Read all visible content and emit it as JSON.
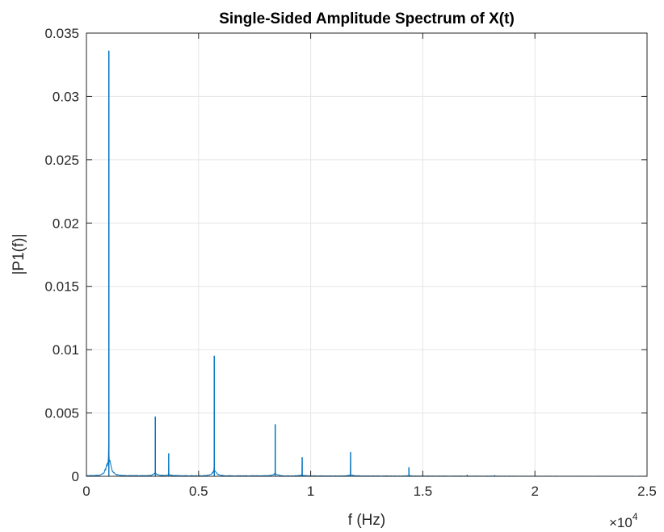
{
  "chart_data": {
    "type": "line",
    "title": "Single-Sided Amplitude Spectrum of X(t)",
    "xlabel": "f (Hz)",
    "ylabel": "|P1(f)|",
    "xlim": [
      0,
      25000
    ],
    "ylim": [
      0,
      0.035
    ],
    "x_multiplier_base": "×10",
    "x_multiplier_exp": "4",
    "x_ticks": [
      0,
      5000,
      10000,
      15000,
      20000,
      25000
    ],
    "x_tick_labels": [
      "0",
      "0.5",
      "1",
      "1.5",
      "2",
      "2.5"
    ],
    "y_ticks": [
      0,
      0.005,
      0.01,
      0.015,
      0.02,
      0.025,
      0.03,
      0.035
    ],
    "y_tick_labels": [
      "0",
      "0.005",
      "0.01",
      "0.015",
      "0.02",
      "0.025",
      "0.03",
      "0.035"
    ],
    "grid": true,
    "line_color": "#0072BD",
    "grid_color": "#e5e5e5",
    "peaks": [
      {
        "f": 1000,
        "amp": 0.0336
      },
      {
        "f": 3070,
        "amp": 0.0047
      },
      {
        "f": 3670,
        "amp": 0.0018
      },
      {
        "f": 5700,
        "amp": 0.0095
      },
      {
        "f": 8420,
        "amp": 0.0041
      },
      {
        "f": 9620,
        "amp": 0.0015
      },
      {
        "f": 11780,
        "amp": 0.0019
      },
      {
        "f": 14380,
        "amp": 0.0007
      },
      {
        "f": 16980,
        "amp": 0.0001
      },
      {
        "f": 18200,
        "amp": 8e-05
      }
    ],
    "noise_floor": 8e-05
  }
}
